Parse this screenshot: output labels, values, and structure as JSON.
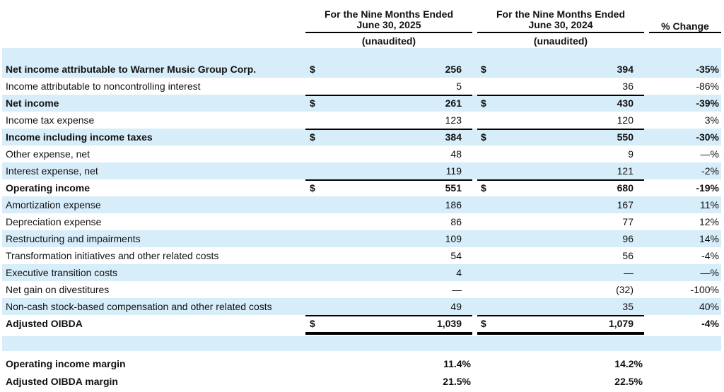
{
  "header": {
    "period_2025": "For the Nine Months Ended June 30, 2025",
    "period_2025_line1": "For the Nine Months Ended",
    "period_2025_line2": "June 30, 2025",
    "period_2024_line1": "For the Nine Months Ended",
    "period_2024_line2": "June 30, 2024",
    "unaudited_2025": "(unaudited)",
    "unaudited_2024": "(unaudited)",
    "pct_change": "% Change"
  },
  "rows": [
    {
      "label": "Net income attributable to Warner Music Group Corp.",
      "d1": "$",
      "v2025": "256",
      "d2": "$",
      "v2024": "394",
      "pct": "-35%"
    },
    {
      "label": "Income attributable to noncontrolling interest",
      "d1": "",
      "v2025": "5",
      "d2": "",
      "v2024": "36",
      "pct": "-86%"
    },
    {
      "label": "Net income",
      "d1": "$",
      "v2025": "261",
      "d2": "$",
      "v2024": "430",
      "pct": "-39%"
    },
    {
      "label": "Income tax expense",
      "d1": "",
      "v2025": "123",
      "d2": "",
      "v2024": "120",
      "pct": "3%"
    },
    {
      "label": "Income including income taxes",
      "d1": "$",
      "v2025": "384",
      "d2": "$",
      "v2024": "550",
      "pct": "-30%"
    },
    {
      "label": "Other expense, net",
      "d1": "",
      "v2025": "48",
      "d2": "",
      "v2024": "9",
      "pct": "—%"
    },
    {
      "label": "Interest expense, net",
      "d1": "",
      "v2025": "119",
      "d2": "",
      "v2024": "121",
      "pct": "-2%"
    },
    {
      "label": "Operating income",
      "d1": "$",
      "v2025": "551",
      "d2": "$",
      "v2024": "680",
      "pct": "-19%"
    },
    {
      "label": "Amortization expense",
      "d1": "",
      "v2025": "186",
      "d2": "",
      "v2024": "167",
      "pct": "11%"
    },
    {
      "label": "Depreciation expense",
      "d1": "",
      "v2025": "86",
      "d2": "",
      "v2024": "77",
      "pct": "12%"
    },
    {
      "label": "Restructuring and impairments",
      "d1": "",
      "v2025": "109",
      "d2": "",
      "v2024": "96",
      "pct": "14%"
    },
    {
      "label": "Transformation initiatives and other related costs",
      "d1": "",
      "v2025": "54",
      "d2": "",
      "v2024": "56",
      "pct": "-4%"
    },
    {
      "label": "Executive transition costs",
      "d1": "",
      "v2025": "4",
      "d2": "",
      "v2024": "—",
      "pct": "—%"
    },
    {
      "label": "Net gain on divestitures",
      "d1": "",
      "v2025": "—",
      "d2": "",
      "v2024": "(32)",
      "pct": "-100%"
    },
    {
      "label": "Non-cash stock-based compensation and other related costs",
      "d1": "",
      "v2025": "49",
      "d2": "",
      "v2024": "35",
      "pct": "40%"
    },
    {
      "label": "Adjusted OIBDA",
      "d1": "$",
      "v2025": "1,039",
      "d2": "$",
      "v2024": "1,079",
      "pct": "-4%"
    }
  ],
  "margins": [
    {
      "label": "Operating income margin",
      "v2025": "11.4%",
      "v2024": "14.2%"
    },
    {
      "label": "Adjusted OIBDA margin",
      "v2025": "21.5%",
      "v2024": "22.5%"
    }
  ]
}
